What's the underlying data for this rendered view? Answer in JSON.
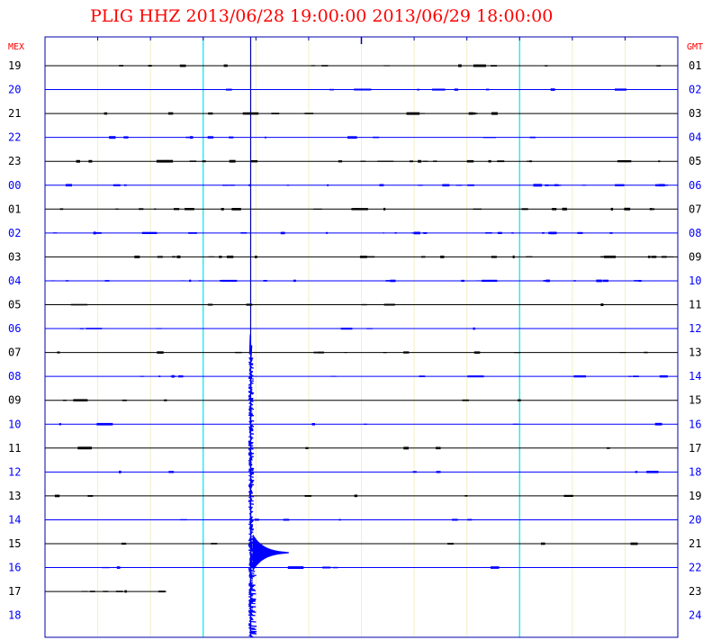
{
  "chart_data": {
    "type": "line",
    "title": "PLIG HHZ 2013/06/28 19:00:00 2013/06/29 18:00:00",
    "left_axis_header": "MEX",
    "right_axis_header": "GMT",
    "left_hour_labels": [
      "19",
      "20",
      "21",
      "22",
      "23",
      "00",
      "01",
      "02",
      "03",
      "04",
      "05",
      "06",
      "07",
      "08",
      "09",
      "10",
      "11",
      "12",
      "13",
      "14",
      "15",
      "16",
      "17",
      "18"
    ],
    "right_hour_labels": [
      "01",
      "02",
      "03",
      "04",
      "05",
      "06",
      "07",
      "08",
      "09",
      "10",
      "11",
      "12",
      "13",
      "14",
      "15",
      "16",
      "17",
      "18",
      "19",
      "20",
      "21",
      "22",
      "23",
      "24"
    ],
    "minutes_per_trace": 60,
    "minute_gridlines": [
      5,
      10,
      15,
      20,
      25,
      30,
      35,
      40,
      45,
      50,
      55
    ],
    "highlight_minutes": [
      15,
      45
    ],
    "marker_minute": 19.5,
    "trace_colors": [
      "#000000",
      "#0000ff"
    ],
    "event": {
      "start_trace_index": 13,
      "onset_minute": 19.4,
      "description_visible": false
    },
    "last_trace": {
      "trace_index": 22,
      "end_minute": 11.5
    },
    "colors": {
      "title": "#ff0000",
      "left_header": "#ff0000",
      "right_header": "#ff0000",
      "frame": "#0000aa",
      "grid": "#f2efc8",
      "highlight": "#00e5ee",
      "marker": "#0000aa",
      "even_trace": "#000000",
      "odd_trace": "#0000ff"
    }
  }
}
